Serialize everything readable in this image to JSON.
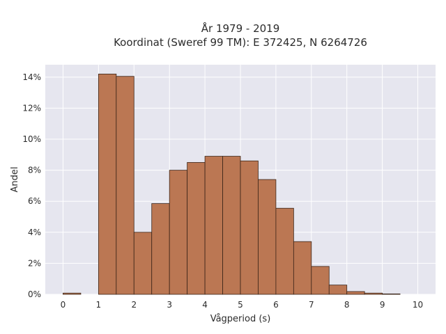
{
  "chart_data": {
    "type": "bar",
    "title_lines": [
      "År 1979 - 2019",
      "Koordinat (Sweref 99 TM): E 372425, N 6264726"
    ],
    "xlabel": "Vågperiod (s)",
    "ylabel": "Andel",
    "xlim": [
      -0.5,
      10.5
    ],
    "ylim": [
      0,
      14.8
    ],
    "x_ticks": [
      0,
      1,
      2,
      3,
      4,
      5,
      6,
      7,
      8,
      9,
      10
    ],
    "x_tick_labels": [
      "0",
      "1",
      "2",
      "3",
      "4",
      "5",
      "6",
      "7",
      "8",
      "9",
      "10"
    ],
    "y_ticks": [
      0,
      2,
      4,
      6,
      8,
      10,
      12,
      14
    ],
    "y_tick_labels": [
      "0%",
      "2%",
      "4%",
      "6%",
      "8%",
      "10%",
      "12%",
      "14%"
    ],
    "bin_width": 0.5,
    "bins": [
      {
        "x0": 0.0,
        "value": 0.08
      },
      {
        "x0": 1.0,
        "value": 14.2
      },
      {
        "x0": 1.5,
        "value": 14.05
      },
      {
        "x0": 2.0,
        "value": 4.0
      },
      {
        "x0": 2.5,
        "value": 5.85
      },
      {
        "x0": 3.0,
        "value": 8.0
      },
      {
        "x0": 3.5,
        "value": 8.5
      },
      {
        "x0": 4.0,
        "value": 8.9
      },
      {
        "x0": 4.5,
        "value": 8.9
      },
      {
        "x0": 5.0,
        "value": 8.6
      },
      {
        "x0": 5.5,
        "value": 7.4
      },
      {
        "x0": 6.0,
        "value": 5.55
      },
      {
        "x0": 6.5,
        "value": 3.4
      },
      {
        "x0": 7.0,
        "value": 1.8
      },
      {
        "x0": 7.5,
        "value": 0.6
      },
      {
        "x0": 8.0,
        "value": 0.18
      },
      {
        "x0": 8.5,
        "value": 0.08
      },
      {
        "x0": 9.0,
        "value": 0.03
      }
    ],
    "grid": true,
    "colors": {
      "bar": "#bb7753",
      "plot_background": "#e6e6ef",
      "grid": "#ffffff"
    }
  }
}
